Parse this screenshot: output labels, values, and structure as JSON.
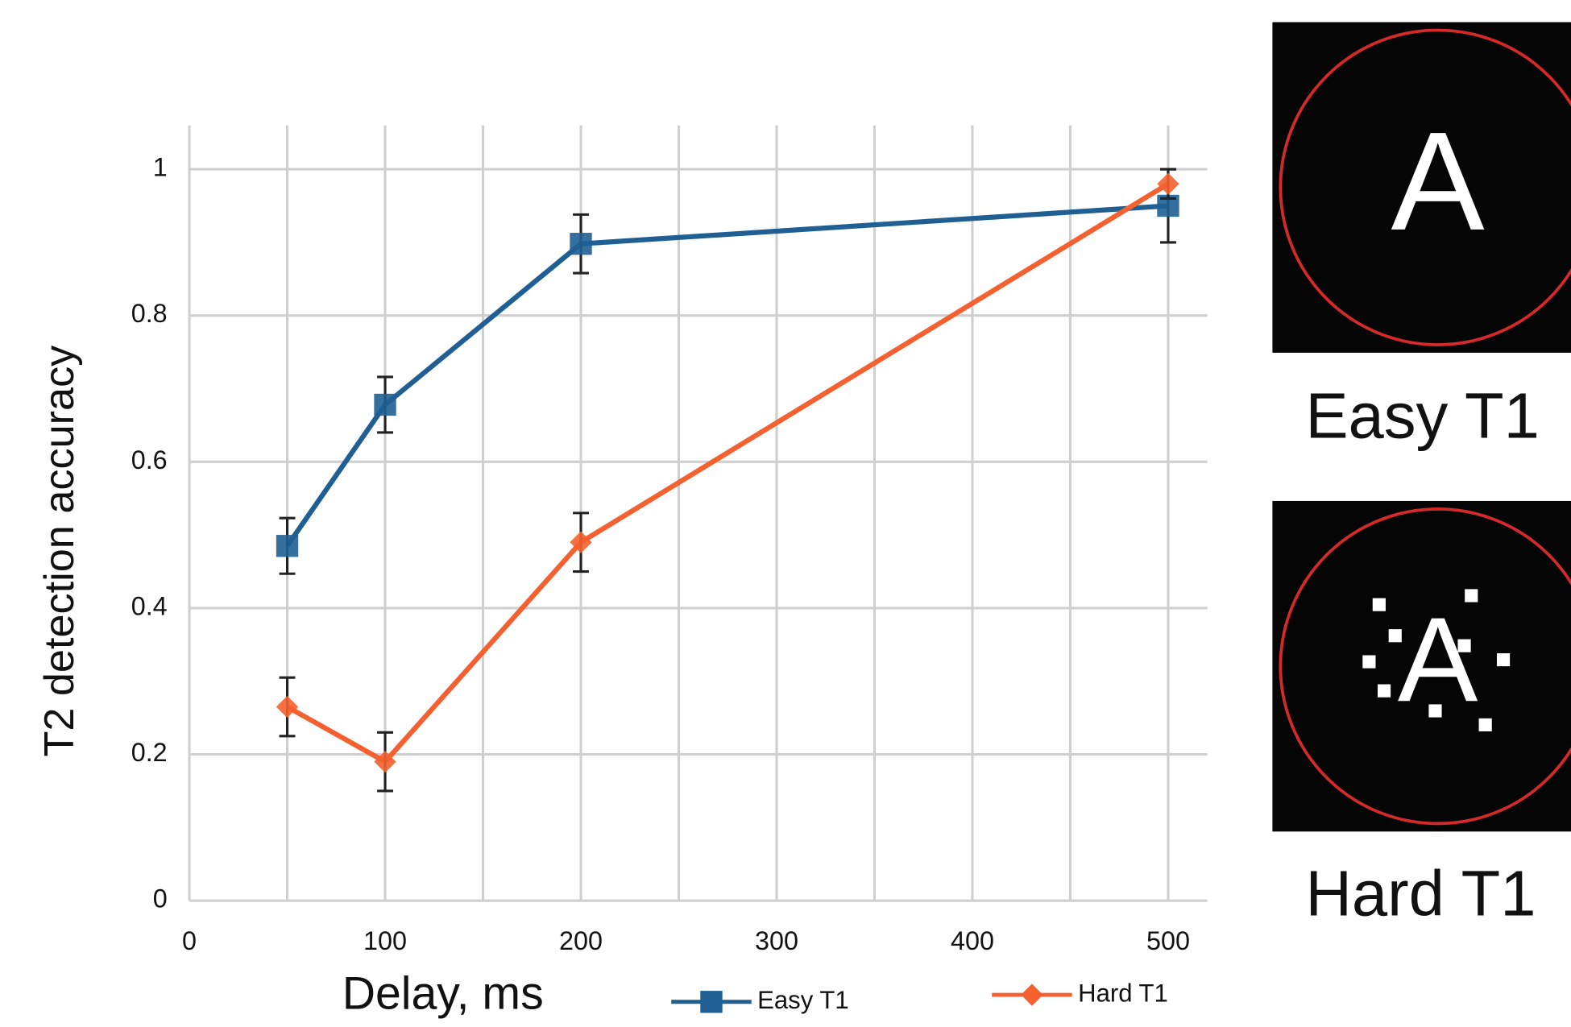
{
  "chart_data": {
    "type": "line",
    "xlabel": "Delay, ms",
    "ylabel": "T2 detection accuracy",
    "x": [
      50,
      100,
      200,
      500
    ],
    "series": [
      {
        "name": "Easy T1",
        "color": "#1f5f93",
        "marker": "square",
        "values": [
          0.485,
          0.678,
          0.898,
          0.95
        ],
        "errors": [
          0.038,
          0.038,
          0.04,
          0.05
        ]
      },
      {
        "name": "Hard T1",
        "color": "#f4602f",
        "marker": "diamond",
        "values": [
          0.265,
          0.19,
          0.49,
          0.98
        ],
        "errors": [
          0.04,
          0.04,
          0.04,
          0.02
        ]
      }
    ],
    "xlim": [
      0,
      520
    ],
    "xticks": [
      0,
      100,
      200,
      300,
      400,
      500
    ],
    "xminorticks": [
      50,
      150,
      250,
      350,
      450
    ],
    "ylim": [
      0,
      1.06
    ],
    "yticks": [
      0,
      0.2,
      0.4,
      0.6,
      0.8,
      {
        "value": 1,
        "label": "1"
      }
    ],
    "grid": true,
    "legend": "bottom"
  },
  "panels": [
    {
      "label": "Easy T1",
      "letter": "A"
    },
    {
      "label": "Hard T1",
      "letter": "A"
    }
  ]
}
